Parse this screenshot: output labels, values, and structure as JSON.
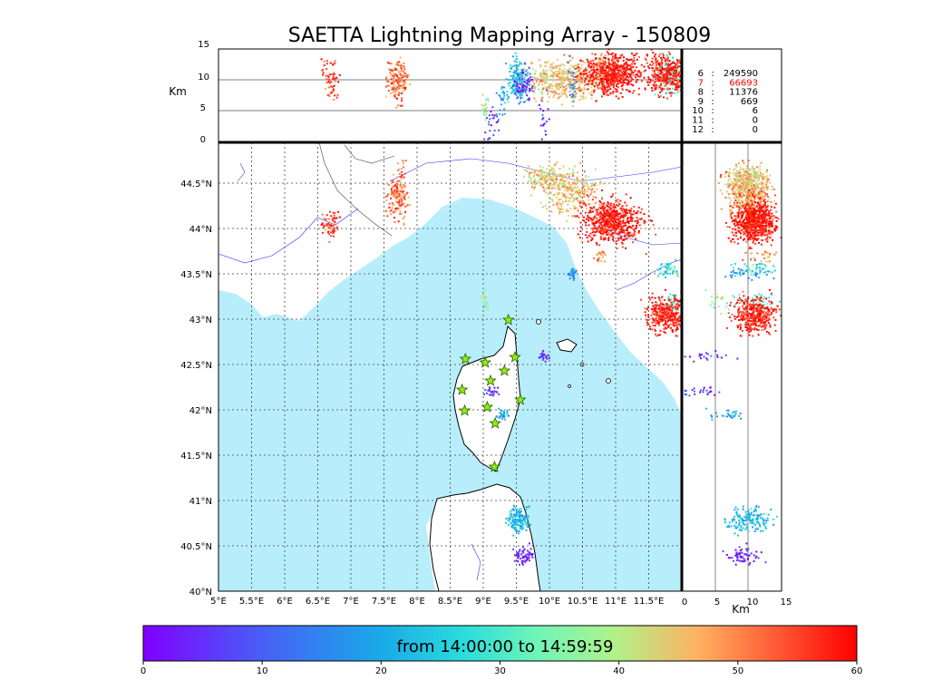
{
  "title": "SAETTA Lightning Mapping Array - 150809",
  "km_label_top": "Km",
  "km_label_right": "Km",
  "top_panel": {
    "y_ticks": [
      "15",
      "10",
      "5",
      "0"
    ],
    "altitude_lines_km": [
      5,
      10
    ]
  },
  "right_panel": {
    "x_ticks": [
      "0",
      "5",
      "10",
      "15"
    ],
    "altitude_lines_km": [
      5,
      10
    ]
  },
  "map": {
    "lon_ticks": [
      "5°E",
      "5.5°E",
      "6°E",
      "6.5°E",
      "7°E",
      "7.5°E",
      "8°E",
      "8.5°E",
      "9°E",
      "9.5°E",
      "10°E",
      "10.5°E",
      "11°E",
      "11.5°E"
    ],
    "lat_ticks": [
      "44.5°N",
      "44°N",
      "43.5°N",
      "43°N",
      "42.5°N",
      "42°N",
      "41.5°N",
      "41°N",
      "40.5°N",
      "40°N"
    ],
    "sea_color": "#b8eefc",
    "grid": "dashed"
  },
  "stats": [
    {
      "label": "6",
      "value": "249590",
      "color": "#000000"
    },
    {
      "label": "7",
      "value": "66693",
      "color": "#ff0000"
    },
    {
      "label": "8",
      "value": "11376",
      "color": "#000000"
    },
    {
      "label": "9",
      "value": "669",
      "color": "#000000"
    },
    {
      "label": "10",
      "value": "6",
      "color": "#000000"
    },
    {
      "label": "11",
      "value": "0",
      "color": "#000000"
    },
    {
      "label": "12",
      "value": "0",
      "color": "#000000"
    }
  ],
  "colorbar": {
    "caption": "from 14:00:00 to 14:59:59",
    "ticks": [
      "0",
      "10",
      "20",
      "30",
      "40",
      "50",
      "60"
    ],
    "colormap": "rainbow",
    "range": [
      0,
      60
    ]
  },
  "stations": [
    {
      "lon": 9.38,
      "lat": 42.99
    },
    {
      "lon": 8.73,
      "lat": 42.56
    },
    {
      "lon": 9.03,
      "lat": 42.52
    },
    {
      "lon": 9.48,
      "lat": 42.58
    },
    {
      "lon": 9.32,
      "lat": 42.43
    },
    {
      "lon": 9.11,
      "lat": 42.32
    },
    {
      "lon": 8.68,
      "lat": 42.22
    },
    {
      "lon": 9.56,
      "lat": 42.11
    },
    {
      "lon": 9.06,
      "lat": 42.03
    },
    {
      "lon": 8.72,
      "lat": 41.99
    },
    {
      "lon": 9.18,
      "lat": 41.85
    },
    {
      "lon": 9.17,
      "lat": 41.37
    }
  ],
  "chart_data": {
    "type": "scatter",
    "title": "SAETTA Lightning Mapping Array - 150809",
    "xlim": [
      5,
      12
    ],
    "ylim": [
      40,
      44.95
    ],
    "alt_lim": [
      0,
      15
    ],
    "clusters": [
      {
        "lon": 6.68,
        "lat": 44.05,
        "dlon": 0.06,
        "dlat": 0.07,
        "alt": 10,
        "time": 56,
        "n": 60
      },
      {
        "lon": 7.72,
        "lat": 44.38,
        "dlon": 0.08,
        "dlat": 0.14,
        "alt": 10,
        "time": 52,
        "n": 160
      },
      {
        "lon": 9.02,
        "lat": 43.2,
        "dlon": 0.03,
        "dlat": 0.06,
        "alt": 6,
        "time": 38,
        "n": 20
      },
      {
        "lon": 9.95,
        "lat": 44.55,
        "dlon": 0.15,
        "dlat": 0.07,
        "alt": 10,
        "time": 44,
        "n": 160
      },
      {
        "lon": 10.35,
        "lat": 44.4,
        "dlon": 0.2,
        "dlat": 0.12,
        "alt": 10,
        "time": 46,
        "n": 260
      },
      {
        "lon": 10.95,
        "lat": 44.08,
        "dlon": 0.22,
        "dlat": 0.12,
        "alt": 11,
        "time": 59,
        "n": 600
      },
      {
        "lon": 11.78,
        "lat": 43.55,
        "dlon": 0.08,
        "dlat": 0.04,
        "alt": 11,
        "time": 28,
        "n": 50
      },
      {
        "lon": 11.9,
        "lat": 43.2,
        "dlon": 0.08,
        "dlat": 0.06,
        "alt": 11,
        "time": 30,
        "n": 50
      },
      {
        "lon": 11.8,
        "lat": 43.05,
        "dlon": 0.16,
        "dlat": 0.1,
        "alt": 11,
        "time": 58,
        "n": 350
      },
      {
        "lon": 10.78,
        "lat": 43.7,
        "dlon": 0.04,
        "dlat": 0.03,
        "alt": 12,
        "time": 49,
        "n": 25
      },
      {
        "lon": 9.9,
        "lat": 42.6,
        "dlon": 0.04,
        "dlat": 0.03,
        "alt": 4,
        "time": 4,
        "n": 20
      },
      {
        "lon": 9.13,
        "lat": 42.2,
        "dlon": 0.05,
        "dlat": 0.03,
        "alt": 3,
        "time": 6,
        "n": 25
      },
      {
        "lon": 9.3,
        "lat": 41.95,
        "dlon": 0.06,
        "dlat": 0.03,
        "alt": 7,
        "time": 21,
        "n": 30
      },
      {
        "lon": 9.53,
        "lat": 40.78,
        "dlon": 0.08,
        "dlat": 0.07,
        "alt": 10,
        "time": 22,
        "n": 160
      },
      {
        "lon": 9.63,
        "lat": 40.4,
        "dlon": 0.07,
        "dlat": 0.05,
        "alt": 9,
        "time": 3,
        "n": 60
      },
      {
        "lon": 10.35,
        "lat": 43.5,
        "dlon": 0.04,
        "dlat": 0.03,
        "alt": 10,
        "time": 16,
        "n": 25
      }
    ]
  }
}
